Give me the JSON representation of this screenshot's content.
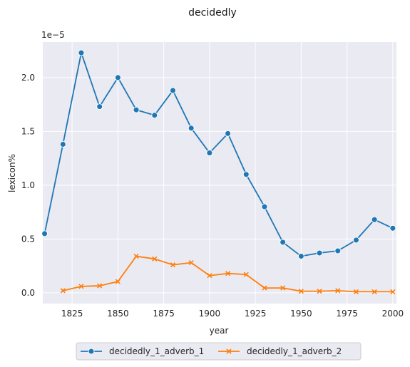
{
  "chart_data": {
    "type": "line",
    "title": "decidedly",
    "xlabel": "year",
    "ylabel": "lexicon%",
    "y_offset_label": "1e−5",
    "xlim": [
      1809,
      2002
    ],
    "ylim": [
      -0.1,
      2.33
    ],
    "x_ticks": [
      1825,
      1850,
      1875,
      1900,
      1925,
      1950,
      1975,
      2000
    ],
    "y_ticks": [
      0.0,
      0.5,
      1.0,
      1.5,
      2.0
    ],
    "y_tick_labels": [
      "0.0",
      "0.5",
      "1.0",
      "1.5",
      "2.0"
    ],
    "grid": true,
    "background": "#eaeaf2",
    "legend_position": "bottom-center",
    "series": [
      {
        "name": "decidedly_1_adverb_1",
        "color": "#1f77b4",
        "marker": "circle",
        "x": [
          1810,
          1820,
          1830,
          1840,
          1850,
          1860,
          1870,
          1880,
          1890,
          1900,
          1910,
          1920,
          1930,
          1940,
          1950,
          1960,
          1970,
          1980,
          1990,
          2000
        ],
        "y": [
          0.55,
          1.38,
          2.23,
          1.73,
          2.0,
          1.7,
          1.65,
          1.88,
          1.53,
          1.3,
          1.48,
          1.1,
          0.8,
          0.47,
          0.34,
          0.37,
          0.39,
          0.49,
          0.68,
          0.6
        ]
      },
      {
        "name": "decidedly_1_adverb_2",
        "color": "#ff7f0e",
        "marker": "x",
        "x": [
          1820,
          1830,
          1840,
          1850,
          1860,
          1870,
          1880,
          1890,
          1900,
          1910,
          1920,
          1930,
          1940,
          1950,
          1960,
          1970,
          1980,
          1990,
          2000
        ],
        "y": [
          0.02,
          0.06,
          0.065,
          0.105,
          0.34,
          0.315,
          0.26,
          0.28,
          0.16,
          0.18,
          0.17,
          0.045,
          0.045,
          0.015,
          0.015,
          0.02,
          0.01,
          0.01,
          0.01
        ]
      }
    ]
  }
}
